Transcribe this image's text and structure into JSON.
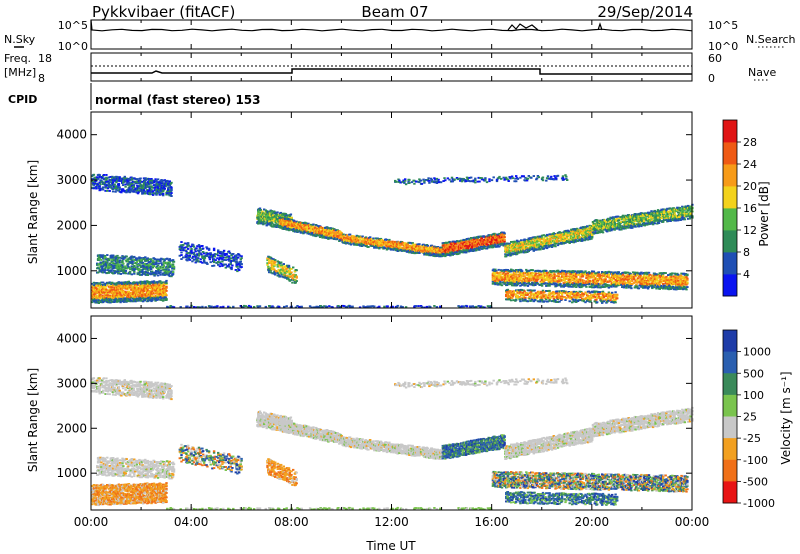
{
  "header": {
    "title": "Pykkvibaer (fitACF)",
    "beam": "Beam 07",
    "date": "29/Sep/2014"
  },
  "strip_panels": {
    "nsky": {
      "label": "N.Sky",
      "ticks": [
        "10^5",
        "10^0"
      ]
    },
    "nsearch": {
      "label": "N.Search",
      "ticks": [
        "10^5",
        "10^0"
      ]
    },
    "freq": {
      "label_line1": "Freq.",
      "label_line2": "[MHz]",
      "ticks": [
        "18",
        "8"
      ]
    },
    "nave": {
      "label": "Nave",
      "ticks": [
        "60",
        "0"
      ]
    },
    "cpid": {
      "label": "CPID",
      "text": "normal (fast stereo) 153"
    }
  },
  "chart_data": [
    {
      "type": "heatmap",
      "panel": "power",
      "ylabel": "Slant Range [km]",
      "xlabel": "Time UT",
      "xlim": [
        "00:00",
        "24:00"
      ],
      "ylim": [
        180,
        4500
      ],
      "y_ticks": [
        1000,
        2000,
        3000,
        4000
      ],
      "x_tick_labels": [
        "00:00",
        "04:00",
        "08:00",
        "12:00",
        "16:00",
        "20:00",
        "00:00"
      ],
      "colorbar": {
        "label": "Power [dB]",
        "ticks": [
          "4",
          "8",
          "12",
          "16",
          "20",
          "24",
          "28"
        ],
        "colors": [
          "#0a14f0",
          "#1f4fb4",
          "#2e8b57",
          "#52b848",
          "#f3d21c",
          "#f79b18",
          "#ef5a14",
          "#e01414"
        ]
      }
    },
    {
      "type": "heatmap",
      "panel": "velocity",
      "ylabel": "Slant Range [km]",
      "xlabel": "Time UT",
      "xlim": [
        "00:00",
        "24:00"
      ],
      "ylim": [
        180,
        4500
      ],
      "y_ticks": [
        1000,
        2000,
        3000,
        4000
      ],
      "x_tick_labels": [
        "00:00",
        "04:00",
        "08:00",
        "12:00",
        "16:00",
        "20:00",
        "00:00"
      ],
      "colorbar": {
        "label": "Velocity [m s⁻¹]",
        "ticks": [
          "1000",
          "500",
          "100",
          "25",
          "-25",
          "-100",
          "-500",
          "-1000"
        ],
        "colors": [
          "#1e3ca8",
          "#2a5fb0",
          "#3a8a5a",
          "#7ac44e",
          "#c8c8c8",
          "#f2a020",
          "#f07018",
          "#e81414"
        ]
      }
    }
  ],
  "x_axis": {
    "title": "Time UT",
    "tick_labels": [
      "00:00",
      "04:00",
      "08:00",
      "12:00",
      "16:00",
      "20:00",
      "00:00"
    ]
  }
}
